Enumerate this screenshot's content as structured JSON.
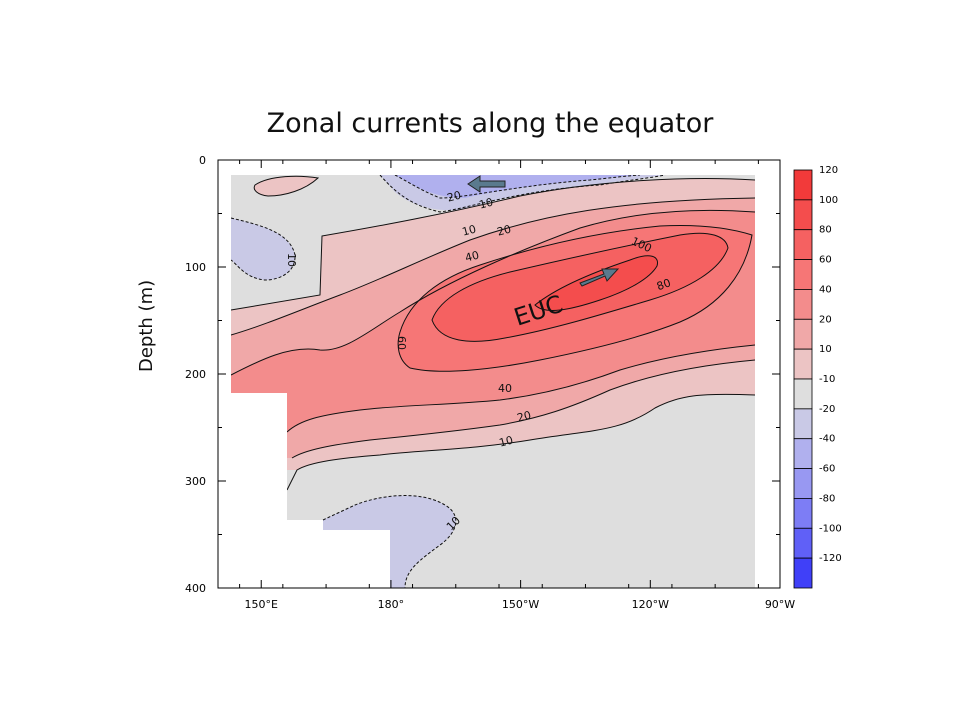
{
  "chart_data": {
    "type": "heatmap",
    "title": "Zonal currents along the equator",
    "ylabel": "Depth (m)",
    "xlabel": "",
    "x_ticks": [
      "150°E",
      "180°",
      "150°W",
      "120°W",
      "90°W"
    ],
    "x_tick_values": [
      150,
      180,
      210,
      240,
      270
    ],
    "xlim": [
      140,
      270
    ],
    "y_ticks": [
      "0",
      "100",
      "200",
      "300",
      "400"
    ],
    "y_tick_values": [
      0,
      100,
      200,
      300,
      400
    ],
    "ylim": [
      0,
      400
    ],
    "y_inverted": true,
    "colorbar": {
      "labels": [
        "120",
        "100",
        "80",
        "60",
        "40",
        "20",
        "10",
        "-10",
        "-20",
        "-40",
        "-60",
        "-80",
        "-100",
        "-120"
      ],
      "colors": [
        "#f23a3a",
        "#f44d4d",
        "#f56161",
        "#f67676",
        "#f38c8c",
        "#f0a8a8",
        "#ecc4c4",
        "#dedede",
        "#c9c9e6",
        "#b0b0ee",
        "#9898f2",
        "#7d7df5",
        "#6060f7",
        "#4040f8"
      ]
    },
    "contour_labels": [
      "20",
      "10",
      "10",
      "20",
      "10",
      "40",
      "100",
      "80",
      "60",
      "40",
      "20",
      "10",
      "10"
    ],
    "annotations": [
      "EUC"
    ],
    "series": [
      {
        "name": "EUC",
        "values": [
          {
            "lon": 210,
            "depth": 140,
            "speed": 100
          },
          {
            "lon": 230,
            "depth": 110,
            "speed": 100
          },
          {
            "lon": 240,
            "depth": 90,
            "speed": 100
          }
        ]
      }
    ]
  }
}
